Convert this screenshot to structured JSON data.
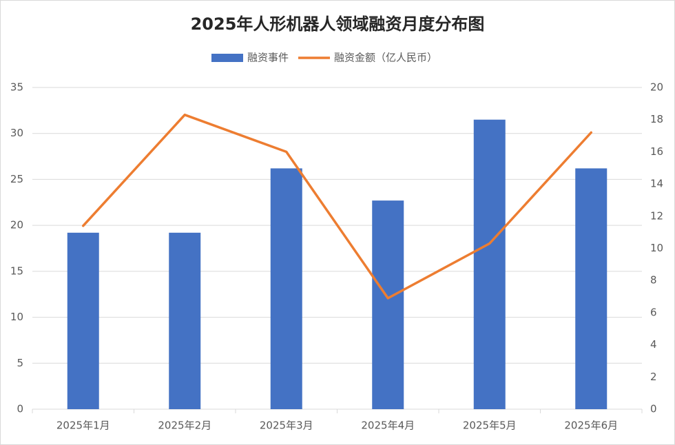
{
  "chart_data": {
    "type": "bar-line",
    "title": "2025年人形机器人领域融资月度分布图",
    "categories": [
      "2025年1月",
      "2025年2月",
      "2025年3月",
      "2025年4月",
      "2025年5月",
      "2025年6月"
    ],
    "series": [
      {
        "name": "融资事件",
        "type": "bar",
        "color": "#4472c4",
        "values": [
          19.2,
          19.2,
          26.2,
          22.7,
          31.5,
          26.2
        ]
      },
      {
        "name": "融资金额（亿人民币）",
        "type": "line",
        "axis": "y2",
        "color": "#ed7d31",
        "values": [
          11.4,
          18.3,
          16.0,
          6.9,
          10.3,
          17.2
        ]
      }
    ],
    "ylim": [
      0,
      35
    ],
    "yticks": [
      0,
      5,
      10,
      15,
      20,
      25,
      30,
      35
    ],
    "y2lim": [
      0,
      20
    ],
    "y2ticks": [
      0,
      2,
      4,
      6,
      8,
      10,
      12,
      14,
      16,
      18,
      20
    ],
    "grid": true,
    "legend": "top"
  }
}
